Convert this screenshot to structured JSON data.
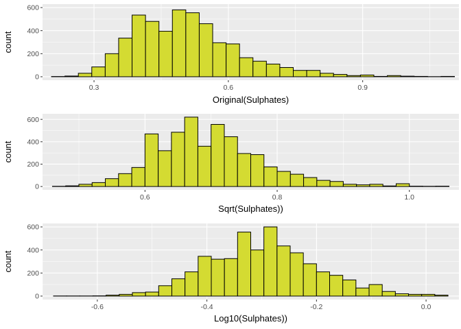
{
  "colors": {
    "panel_background": "#ebebeb",
    "grid_major": "#ffffff",
    "bar_fill": "#d4db32",
    "bar_outline": "#000000",
    "tick_color": "#333333"
  },
  "chart_data": [
    {
      "type": "bar",
      "xlabel": "Original(Sulphates)",
      "ylabel": "count",
      "xlim": [
        0.185,
        1.115
      ],
      "ylim": [
        -30,
        630
      ],
      "xticks": [
        {
          "value": 0.3,
          "label": "0.3"
        },
        {
          "value": 0.6,
          "label": "0.6"
        },
        {
          "value": 0.9,
          "label": "0.9"
        }
      ],
      "yticks": [
        {
          "value": 0,
          "label": "0"
        },
        {
          "value": 200,
          "label": "200"
        },
        {
          "value": 400,
          "label": "400"
        },
        {
          "value": 600,
          "label": "600"
        }
      ],
      "bin_start": 0.205,
      "bin_width": 0.03,
      "values": [
        2,
        6,
        30,
        85,
        200,
        335,
        535,
        480,
        395,
        580,
        555,
        460,
        295,
        285,
        165,
        135,
        110,
        80,
        55,
        55,
        30,
        20,
        10,
        15,
        3,
        10,
        5,
        3,
        1,
        3
      ]
    },
    {
      "type": "bar",
      "xlabel": "Sqrt(Sulphates))",
      "ylabel": "count",
      "xlim": [
        0.445,
        1.075
      ],
      "ylim": [
        -30,
        650
      ],
      "xticks": [
        {
          "value": 0.6,
          "label": "0.6"
        },
        {
          "value": 0.8,
          "label": "0.8"
        },
        {
          "value": 1.0,
          "label": "1.0"
        }
      ],
      "yticks": [
        {
          "value": 0,
          "label": "0"
        },
        {
          "value": 200,
          "label": "200"
        },
        {
          "value": 400,
          "label": "400"
        },
        {
          "value": 600,
          "label": "600"
        }
      ],
      "bin_start": 0.46,
      "bin_width": 0.02,
      "values": [
        2,
        6,
        20,
        35,
        70,
        115,
        170,
        470,
        320,
        485,
        620,
        360,
        555,
        445,
        295,
        285,
        175,
        135,
        110,
        80,
        55,
        45,
        20,
        15,
        20,
        5,
        25,
        3,
        2,
        3
      ]
    },
    {
      "type": "bar",
      "xlabel": "Log10(Sulphates))",
      "ylabel": "count",
      "xlim": [
        -0.7,
        0.06
      ],
      "ylim": [
        -30,
        630
      ],
      "xticks": [
        {
          "value": -0.6,
          "label": "-0.6"
        },
        {
          "value": -0.4,
          "label": "-0.4"
        },
        {
          "value": -0.2,
          "label": "-0.2"
        },
        {
          "value": 0.0,
          "label": "0.0"
        }
      ],
      "yticks": [
        {
          "value": 0,
          "label": "0"
        },
        {
          "value": 200,
          "label": "200"
        },
        {
          "value": 400,
          "label": "400"
        },
        {
          "value": 600,
          "label": "600"
        }
      ],
      "bin_start": -0.68,
      "bin_width": 0.024,
      "values": [
        1,
        1,
        1,
        2,
        8,
        15,
        30,
        35,
        90,
        150,
        210,
        345,
        320,
        325,
        555,
        400,
        600,
        435,
        375,
        280,
        210,
        180,
        140,
        70,
        100,
        40,
        20,
        15,
        15,
        8
      ]
    }
  ]
}
